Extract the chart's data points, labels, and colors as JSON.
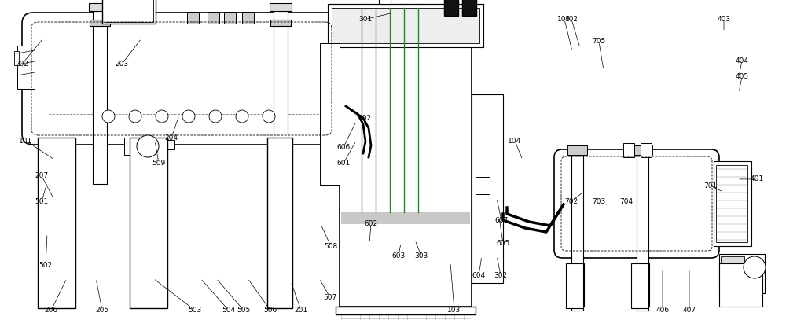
{
  "bg_color": "#ffffff",
  "lc": "#000000",
  "lc_green": "#228822",
  "lc_gray": "#888888",
  "lc_dark": "#333333",
  "fs": 6.5,
  "figw": 10.0,
  "figh": 4.07,
  "labels": {
    "101": [
      0.033,
      0.44,
      0.07,
      0.5
    ],
    "102": [
      0.465,
      0.37,
      0.46,
      0.41
    ],
    "103": [
      0.578,
      0.97,
      0.573,
      0.82
    ],
    "104": [
      0.655,
      0.44,
      0.665,
      0.5
    ],
    "105": [
      0.718,
      0.06,
      0.728,
      0.16
    ],
    "201": [
      0.383,
      0.97,
      0.37,
      0.88
    ],
    "202": [
      0.028,
      0.2,
      0.055,
      0.12
    ],
    "203": [
      0.155,
      0.2,
      0.18,
      0.12
    ],
    "204": [
      0.218,
      0.43,
      0.228,
      0.36
    ],
    "205": [
      0.13,
      0.97,
      0.122,
      0.87
    ],
    "206": [
      0.065,
      0.97,
      0.085,
      0.87
    ],
    "207": [
      0.053,
      0.55,
      0.068,
      0.62
    ],
    "301": [
      0.465,
      0.06,
      0.5,
      0.04
    ],
    "302": [
      0.637,
      0.86,
      0.632,
      0.8
    ],
    "303": [
      0.536,
      0.8,
      0.528,
      0.75
    ],
    "401": [
      0.963,
      0.56,
      0.938,
      0.56
    ],
    "402": [
      0.727,
      0.06,
      0.738,
      0.15
    ],
    "403": [
      0.921,
      0.06,
      0.921,
      0.1
    ],
    "404": [
      0.944,
      0.19,
      0.94,
      0.24
    ],
    "405": [
      0.944,
      0.24,
      0.94,
      0.29
    ],
    "406": [
      0.843,
      0.97,
      0.843,
      0.84
    ],
    "407": [
      0.877,
      0.97,
      0.877,
      0.84
    ],
    "501": [
      0.053,
      0.63,
      0.06,
      0.57
    ],
    "502": [
      0.058,
      0.83,
      0.06,
      0.73
    ],
    "503": [
      0.248,
      0.97,
      0.195,
      0.87
    ],
    "504": [
      0.291,
      0.97,
      0.255,
      0.87
    ],
    "505": [
      0.31,
      0.97,
      0.275,
      0.87
    ],
    "506": [
      0.344,
      0.97,
      0.315,
      0.87
    ],
    "507": [
      0.42,
      0.93,
      0.406,
      0.87
    ],
    "508": [
      0.421,
      0.77,
      0.408,
      0.7
    ],
    "509": [
      0.202,
      0.51,
      0.197,
      0.44
    ],
    "601": [
      0.437,
      0.51,
      0.453,
      0.44
    ],
    "602": [
      0.472,
      0.7,
      0.47,
      0.76
    ],
    "603": [
      0.507,
      0.8,
      0.51,
      0.76
    ],
    "604": [
      0.609,
      0.86,
      0.613,
      0.8
    ],
    "605": [
      0.64,
      0.76,
      0.635,
      0.68
    ],
    "606": [
      0.437,
      0.46,
      0.453,
      0.38
    ],
    "607": [
      0.638,
      0.69,
      0.632,
      0.62
    ],
    "701": [
      0.904,
      0.58,
      0.92,
      0.6
    ],
    "702": [
      0.727,
      0.63,
      0.742,
      0.6
    ],
    "703": [
      0.762,
      0.63,
      0.77,
      0.6
    ],
    "704": [
      0.797,
      0.63,
      0.8,
      0.6
    ],
    "705": [
      0.762,
      0.13,
      0.768,
      0.22
    ]
  }
}
